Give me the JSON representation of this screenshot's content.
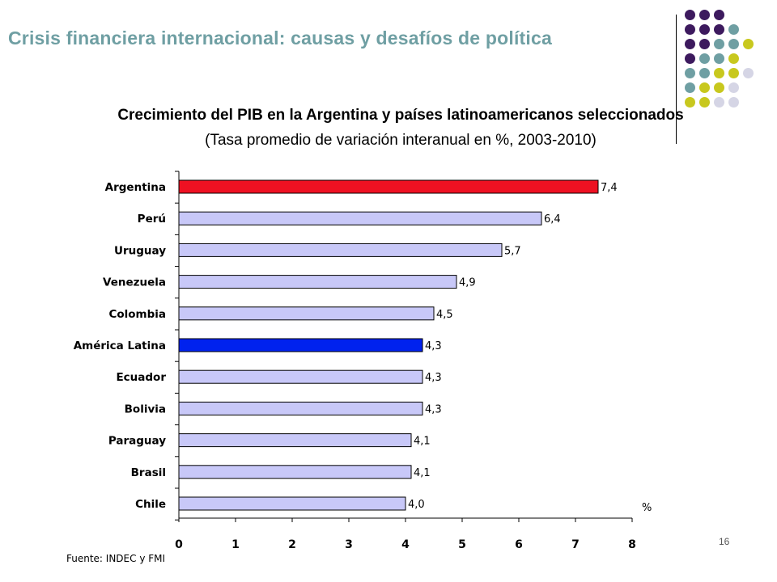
{
  "slide": {
    "title": "Crisis financiera internacional: causas y desafíos de política",
    "page_number": "16",
    "source": "Fuente: INDEC y FMI"
  },
  "colors": {
    "title": "#6f9fa3",
    "bar_default": "#c8c8f8",
    "bar_argentina": "#ee1122",
    "bar_america_latina": "#0022ee",
    "dot_purple": "#3d1a5e",
    "dot_teal": "#6f9fa3",
    "dot_yellow": "#c8c81e",
    "dot_lavender": "#d5d5e5"
  },
  "decoration": {
    "dot_grid": [
      [
        "purple",
        "purple",
        "purple"
      ],
      [
        "purple",
        "purple",
        "purple",
        "teal"
      ],
      [
        "purple",
        "purple",
        "teal",
        "teal",
        "yellow"
      ],
      [
        "purple",
        "teal",
        "teal",
        "yellow"
      ],
      [
        "teal",
        "teal",
        "yellow",
        "yellow",
        "lavender"
      ],
      [
        "teal",
        "yellow",
        "yellow",
        "lavender"
      ],
      [
        "yellow",
        "yellow",
        "lavender",
        "lavender"
      ]
    ]
  },
  "chart_data": {
    "type": "bar",
    "orientation": "horizontal",
    "title": "Crecimiento del PIB en la Argentina y países latinoamericanos seleccionados",
    "subtitle": "(Tasa promedio de variación interanual en %, 2003-2010)",
    "categories": [
      "Argentina",
      "Perú",
      "Uruguay",
      "Venezuela",
      "Colombia",
      "América Latina",
      "Ecuador",
      "Bolivia",
      "Paraguay",
      "Brasil",
      "Chile"
    ],
    "values": [
      7.4,
      6.4,
      5.7,
      4.9,
      4.5,
      4.3,
      4.3,
      4.3,
      4.1,
      4.1,
      4.0
    ],
    "value_labels": [
      "7,4",
      "6,4",
      "5,7",
      "4,9",
      "4,5",
      "4,3",
      "4,3",
      "4,3",
      "4,1",
      "4,1",
      "4,0"
    ],
    "highlight": {
      "Argentina": "bar_argentina",
      "América Latina": "bar_america_latina"
    },
    "xlim": [
      0,
      8
    ],
    "xticks": [
      "0",
      "1",
      "2",
      "3",
      "4",
      "5",
      "6",
      "7",
      "8"
    ],
    "unit": "%",
    "grid": false
  }
}
